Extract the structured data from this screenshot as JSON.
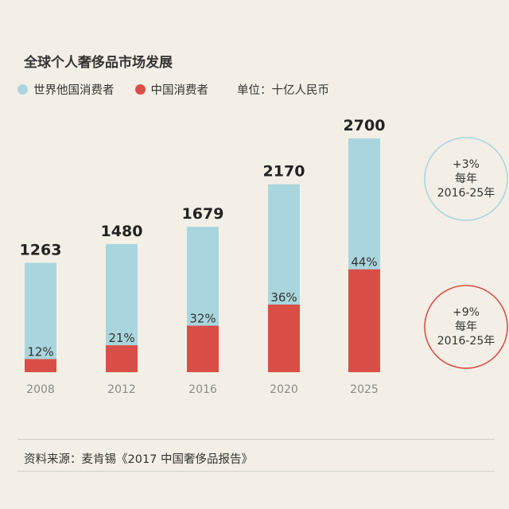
{
  "header": {
    "title": "全球个人奢侈品市场发展"
  },
  "legend": {
    "items": [
      {
        "label": "世界他国消费者",
        "color": "#a9d6de"
      },
      {
        "label": "中国消费者",
        "color": "#d94f47"
      }
    ],
    "unit": "单位：十亿人民币"
  },
  "chart_data": {
    "type": "bar",
    "stacked": true,
    "categories": [
      "2008",
      "2012",
      "2016",
      "2020",
      "2025"
    ],
    "totals": [
      1263,
      1480,
      1679,
      2170,
      2700
    ],
    "china_share_labels": [
      "12%",
      "21%",
      "32%",
      "36%",
      "44%"
    ],
    "china_share": [
      0.12,
      0.21,
      0.32,
      0.36,
      0.44
    ],
    "series": [
      {
        "name": "世界他国消费者",
        "color": "#a9d6de"
      },
      {
        "name": "中国消费者",
        "color": "#d94f47"
      }
    ],
    "ylim": [
      0,
      2700
    ],
    "annotations": [
      {
        "lines": [
          "+3%",
          "每年",
          "2016-25年"
        ],
        "color": "#a9d6de"
      },
      {
        "lines": [
          "+9%",
          "每年",
          "2016-25年"
        ],
        "color": "#d94f47"
      }
    ]
  },
  "footer": {
    "source": "资料来源：麦肯锡《2017 中国奢侈品报告》"
  }
}
